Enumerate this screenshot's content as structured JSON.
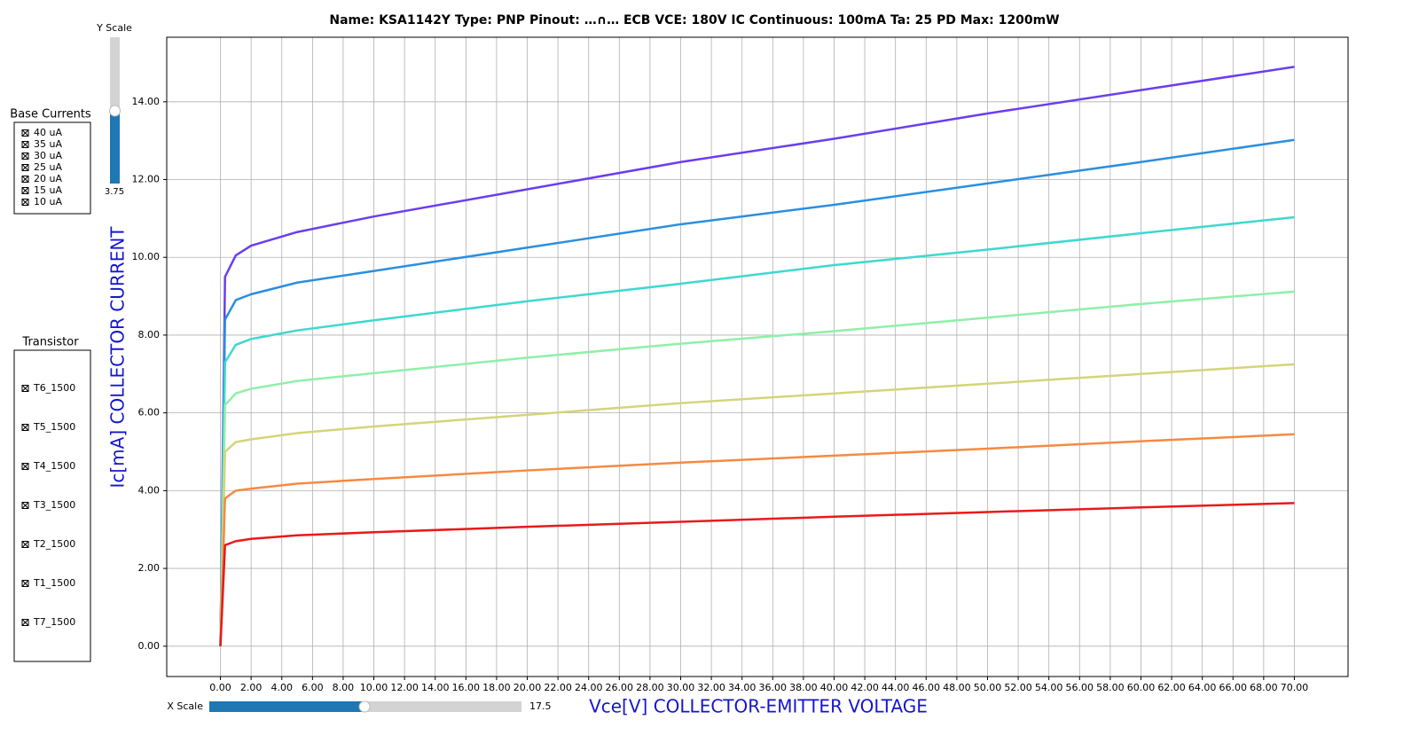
{
  "chart_data": {
    "type": "line",
    "title": "Name: KSA1142Y  Type: PNP  Pinout: …∩… ECB  VCE: 180V  IC Continuous: 100mA  Ta: 25  PD Max: 1200mW",
    "x_label": "Vce[V] COLLECTOR-EMITTER VOLTAGE",
    "y_label": "Ic[mA] COLLECTOR CURRENT",
    "legend_title": "Base Currents",
    "grid": true,
    "xlim": [
      -3.5,
      73.5
    ],
    "ylim": [
      -0.78,
      15.66
    ],
    "xticks": [
      {
        "value": 0,
        "label": "0.00"
      },
      {
        "value": 2,
        "label": "2.00"
      },
      {
        "value": 4,
        "label": "4.00"
      },
      {
        "value": 6,
        "label": "6.00"
      },
      {
        "value": 8,
        "label": "8.00"
      },
      {
        "value": 10,
        "label": "10.00"
      },
      {
        "value": 12,
        "label": "12.00"
      },
      {
        "value": 14,
        "label": "14.00"
      },
      {
        "value": 16,
        "label": "16.00"
      },
      {
        "value": 18,
        "label": "18.00"
      },
      {
        "value": 20,
        "label": "20.00"
      },
      {
        "value": 22,
        "label": "22.00"
      },
      {
        "value": 24,
        "label": "24.00"
      },
      {
        "value": 26,
        "label": "26.00"
      },
      {
        "value": 28,
        "label": "28.00"
      },
      {
        "value": 30,
        "label": "30.00"
      },
      {
        "value": 32,
        "label": "32.00"
      },
      {
        "value": 34,
        "label": "34.00"
      },
      {
        "value": 36,
        "label": "36.00"
      },
      {
        "value": 38,
        "label": "38.00"
      },
      {
        "value": 40,
        "label": "40.00"
      },
      {
        "value": 42,
        "label": "42.00"
      },
      {
        "value": 44,
        "label": "44.00"
      },
      {
        "value": 46,
        "label": "46.00"
      },
      {
        "value": 48,
        "label": "48.00"
      },
      {
        "value": 50,
        "label": "50.00"
      },
      {
        "value": 52,
        "label": "52.00"
      },
      {
        "value": 54,
        "label": "54.00"
      },
      {
        "value": 56,
        "label": "56.00"
      },
      {
        "value": 58,
        "label": "58.00"
      },
      {
        "value": 60,
        "label": "60.00"
      },
      {
        "value": 62,
        "label": "62.00"
      },
      {
        "value": 64,
        "label": "64.00"
      },
      {
        "value": 66,
        "label": "66.00"
      },
      {
        "value": 68,
        "label": "68.00"
      },
      {
        "value": 70,
        "label": "70.00"
      }
    ],
    "yticks": [
      {
        "value": 0,
        "label": "0.00"
      },
      {
        "value": 2,
        "label": "2.00"
      },
      {
        "value": 4,
        "label": "4.00"
      },
      {
        "value": 6,
        "label": "6.00"
      },
      {
        "value": 8,
        "label": "8.00"
      },
      {
        "value": 10,
        "label": "10.00"
      },
      {
        "value": 12,
        "label": "12.00"
      },
      {
        "value": 14,
        "label": "14.00"
      }
    ],
    "x": [
      0,
      0.3,
      1,
      2,
      5,
      10,
      20,
      30,
      40,
      50,
      60,
      70
    ],
    "series": [
      {
        "name": "40 uA",
        "color": "#6a3ef0",
        "values": [
          0,
          9.5,
          10.05,
          10.3,
          10.65,
          11.05,
          11.75,
          12.45,
          13.05,
          13.7,
          14.3,
          14.9
        ]
      },
      {
        "name": "35 uA",
        "color": "#2a8fe0",
        "values": [
          0,
          8.4,
          8.9,
          9.05,
          9.35,
          9.65,
          10.25,
          10.85,
          11.35,
          11.9,
          12.45,
          13.02
        ]
      },
      {
        "name": "30 uA",
        "color": "#3ed8d0",
        "values": [
          0,
          7.3,
          7.75,
          7.9,
          8.12,
          8.38,
          8.87,
          9.32,
          9.8,
          10.2,
          10.62,
          11.03
        ]
      },
      {
        "name": "25 uA",
        "color": "#8ef0a8",
        "values": [
          0,
          6.2,
          6.5,
          6.62,
          6.82,
          7.02,
          7.42,
          7.78,
          8.1,
          8.45,
          8.8,
          9.12
        ]
      },
      {
        "name": "20 uA",
        "color": "#d4d47a",
        "values": [
          0,
          5.0,
          5.25,
          5.32,
          5.48,
          5.65,
          5.95,
          6.25,
          6.5,
          6.75,
          7.0,
          7.25
        ]
      },
      {
        "name": "15 uA",
        "color": "#f58a42",
        "values": [
          0,
          3.8,
          4.0,
          4.05,
          4.18,
          4.3,
          4.52,
          4.72,
          4.9,
          5.08,
          5.27,
          5.45
        ]
      },
      {
        "name": "10 uA",
        "color": "#e81a1a",
        "values": [
          0,
          2.6,
          2.7,
          2.76,
          2.85,
          2.93,
          3.07,
          3.2,
          3.33,
          3.45,
          3.57,
          3.68
        ]
      }
    ]
  },
  "transistors": {
    "title": "Transistor",
    "items": [
      "T6_1500",
      "T5_1500",
      "T4_1500",
      "T3_1500",
      "T2_1500",
      "T1_1500",
      "T7_1500"
    ]
  },
  "controls": {
    "y_scale": {
      "label": "Y Scale",
      "value": 3.75
    },
    "x_scale": {
      "label": "X Scale",
      "value": 17.5
    }
  }
}
